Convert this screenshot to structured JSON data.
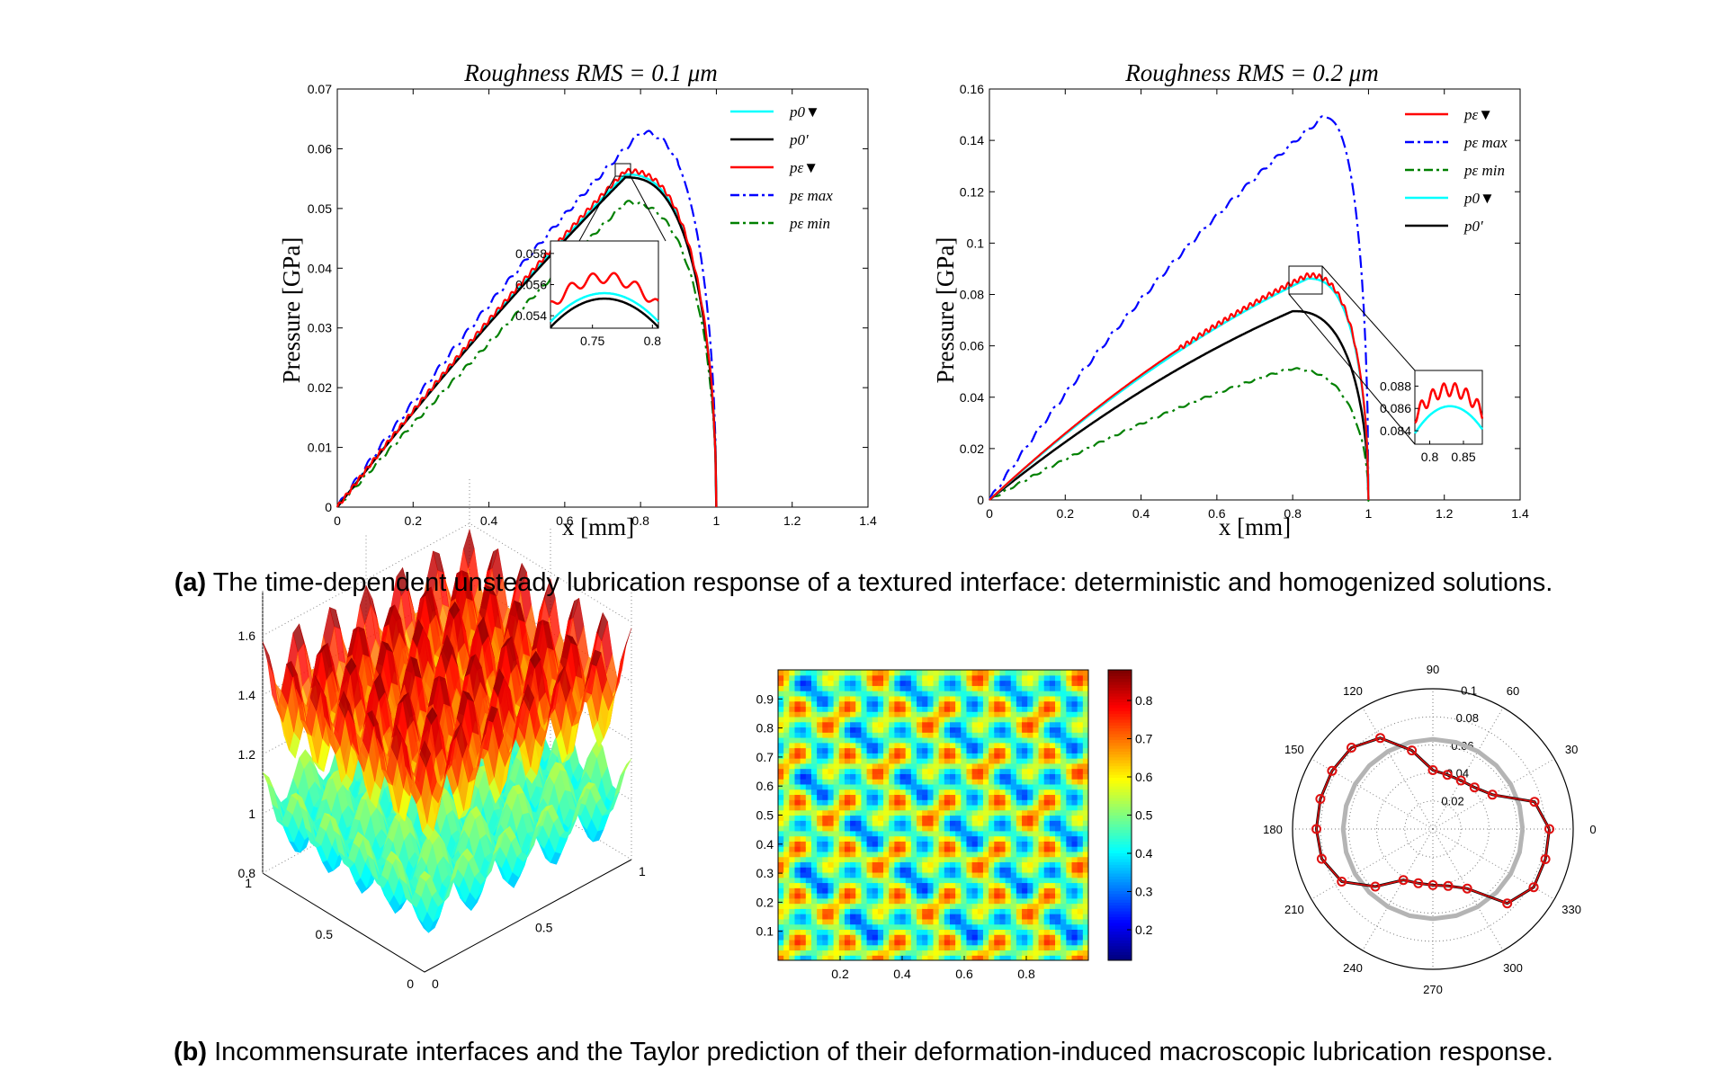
{
  "captions": {
    "a_label": "(a)",
    "a_text": " The time-dependent unsteady lubrication response of a textured interface: deterministic and homogenized solutions.",
    "b_label": "(b)",
    "b_text": " Incommensurate interfaces and the Taylor prediction of their deformation-induced macroscopic lubrication response."
  },
  "chart_data": [
    {
      "id": "rms01",
      "type": "line",
      "title": "Roughness RMS = 0.1 μm",
      "xlabel": "x [mm]",
      "ylabel": "Pressure [GPa]",
      "xlim": [
        0,
        1.4
      ],
      "ylim": [
        0,
        0.07
      ],
      "xticks": [
        "0",
        "0.2",
        "0.4",
        "0.6",
        "0.8",
        "1",
        "1.2",
        "1.4"
      ],
      "yticks": [
        "0",
        "0.01",
        "0.02",
        "0.03",
        "0.04",
        "0.05",
        "0.06",
        "0.07"
      ],
      "legend_position": "top-right",
      "peaks": {
        "p0_hom": 0.0557,
        "p0_prime": 0.0552,
        "p_eps": 0.0563,
        "p_max": 0.0627,
        "p_min": 0.051
      },
      "series": [
        {
          "name": "p0▼",
          "color": "#00ffff",
          "style": "solid"
        },
        {
          "name": "p0′",
          "color": "#000000",
          "style": "solid"
        },
        {
          "name": "pε▼",
          "color": "#ff0000",
          "style": "solid"
        },
        {
          "name": "pε max",
          "color": "#0000ff",
          "style": "dashdot"
        },
        {
          "name": "pε min",
          "color": "#008000",
          "style": "dashdot"
        }
      ],
      "inset": {
        "xticks": [
          "0.75",
          "0.8"
        ],
        "yticks": [
          "0.054",
          "0.056",
          "0.058"
        ],
        "xlim": [
          0.715,
          0.805
        ],
        "ylim": [
          0.0532,
          0.0588
        ]
      }
    },
    {
      "id": "rms02",
      "type": "line",
      "title": "Roughness RMS = 0.2 μm",
      "xlabel": "x [mm]",
      "ylabel": "Pressure [GPa]",
      "xlim": [
        0,
        1.4
      ],
      "ylim": [
        0,
        0.16
      ],
      "xticks": [
        "0",
        "0.2",
        "0.4",
        "0.6",
        "0.8",
        "1",
        "1.2",
        "1.4"
      ],
      "yticks": [
        "0",
        "0.02",
        "0.04",
        "0.06",
        "0.08",
        "0.1",
        "0.12",
        "0.14",
        "0.16"
      ],
      "legend_position": "top-right",
      "peaks": {
        "p_eps": 0.0875,
        "p_max": 0.149,
        "p_min": 0.051,
        "p0_hom": 0.0862,
        "p0_prime": 0.0735
      },
      "series": [
        {
          "name": "pε▼",
          "color": "#ff0000",
          "style": "solid"
        },
        {
          "name": "pε max",
          "color": "#0000ff",
          "style": "dashdot"
        },
        {
          "name": "pε min",
          "color": "#008000",
          "style": "dashdot"
        },
        {
          "name": "p0▼",
          "color": "#00ffff",
          "style": "solid"
        },
        {
          "name": "p0′",
          "color": "#000000",
          "style": "solid"
        }
      ],
      "inset": {
        "xticks": [
          "0.8",
          "0.85"
        ],
        "yticks": [
          "0.084",
          "0.086",
          "0.088"
        ],
        "xlim": [
          0.778,
          0.878
        ],
        "ylim": [
          0.0828,
          0.0894
        ]
      }
    },
    {
      "id": "surface3d",
      "type": "other",
      "ticks_z": [
        "0.8",
        "1",
        "1.2",
        "1.4",
        "1.6"
      ],
      "ticks_left_axis": [
        "1",
        "0.5",
        "0"
      ],
      "ticks_right_axis": [
        "0",
        "0.5",
        "1"
      ]
    },
    {
      "id": "heatmap",
      "type": "heatmap",
      "xticks": [
        "0.2",
        "0.4",
        "0.6",
        "0.8"
      ],
      "yticks": [
        "0.1",
        "0.2",
        "0.3",
        "0.4",
        "0.5",
        "0.6",
        "0.7",
        "0.8",
        "0.9"
      ],
      "colorbar_ticks": [
        "0.2",
        "0.3",
        "0.4",
        "0.5",
        "0.6",
        "0.7",
        "0.8"
      ],
      "colorbar_range": [
        0.12,
        0.88
      ]
    },
    {
      "id": "polar",
      "type": "scatter",
      "angle_ticks": [
        "0",
        "30",
        "60",
        "90",
        "120",
        "150",
        "180",
        "210",
        "240",
        "270",
        "300",
        "330"
      ],
      "radial_ticks": [
        "0.02",
        "0.04",
        "0.06",
        "0.08",
        "0.1"
      ],
      "rmax": 0.1,
      "series_ref_radius": 0.064,
      "angles": [
        0,
        15,
        30,
        45,
        60,
        75,
        90,
        105,
        120,
        135,
        150,
        165,
        180,
        195,
        210,
        225,
        240,
        255,
        270,
        285,
        300,
        315,
        330,
        345
      ],
      "radii": [
        0.083,
        0.075,
        0.049,
        0.042,
        0.04,
        0.04,
        0.042,
        0.058,
        0.075,
        0.082,
        0.083,
        0.083,
        0.083,
        0.082,
        0.075,
        0.058,
        0.042,
        0.04,
        0.04,
        0.042,
        0.049,
        0.075,
        0.083,
        0.083
      ],
      "colors": {
        "data": "#e01010",
        "fit": "#000000",
        "reference": "#b4b4b4"
      }
    }
  ]
}
